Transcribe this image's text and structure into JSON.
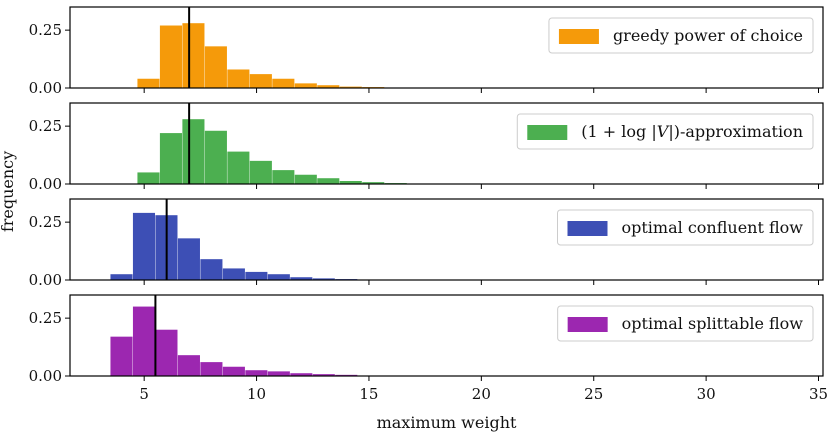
{
  "chart_data": {
    "type": "histogram",
    "xlabel": "maximum weight",
    "ylabel": "frequency",
    "xlim": [
      1.7,
      35.2
    ],
    "ylim": [
      0,
      0.35
    ],
    "xticks": [
      5,
      10,
      15,
      20,
      25,
      30,
      35
    ],
    "yticks": [
      0.0,
      0.25
    ],
    "ytick_labels": [
      "0.00",
      "0.25"
    ],
    "bin_width": 1.0,
    "legend_position": "top-right",
    "panels": [
      {
        "name": "greedy power of choice",
        "label_parts": [
          "greedy power of choice"
        ],
        "color": "#f59a0a",
        "bins_start": [
          4.7,
          5.7,
          6.7,
          7.7,
          8.7,
          9.7,
          10.7,
          11.7,
          12.7,
          13.7,
          14.7,
          15.7
        ],
        "values": [
          0.04,
          0.27,
          0.28,
          0.18,
          0.08,
          0.06,
          0.04,
          0.02,
          0.012,
          0.006,
          0.004,
          0.002
        ],
        "marker": 7.0
      },
      {
        "name": "(1 + log |V|)-approximation",
        "label_parts": [
          "(1 + log |",
          "V",
          "|)-approximation"
        ],
        "color": "#4caf50",
        "bins_start": [
          4.7,
          5.7,
          6.7,
          7.7,
          8.7,
          9.7,
          10.7,
          11.7,
          12.7,
          13.7,
          14.7,
          15.7
        ],
        "values": [
          0.05,
          0.22,
          0.28,
          0.23,
          0.14,
          0.1,
          0.06,
          0.04,
          0.025,
          0.013,
          0.008,
          0.004
        ],
        "marker": 7.0
      },
      {
        "name": "optimal confluent flow",
        "label_parts": [
          "optimal confluent flow"
        ],
        "color": "#3d4fb5",
        "bins_start": [
          3.5,
          4.5,
          5.5,
          6.5,
          7.5,
          8.5,
          9.5,
          10.5,
          11.5,
          12.5,
          13.5,
          14.5,
          15.5
        ],
        "values": [
          0.025,
          0.29,
          0.28,
          0.18,
          0.09,
          0.05,
          0.035,
          0.025,
          0.012,
          0.007,
          0.004,
          0.002,
          0.001
        ],
        "marker": 6.0
      },
      {
        "name": "optimal splittable flow",
        "label_parts": [
          "optimal splittable flow"
        ],
        "color": "#9c27b0",
        "bins_start": [
          3.5,
          4.5,
          5.5,
          6.5,
          7.5,
          8.5,
          9.5,
          10.5,
          11.5,
          12.5,
          13.5,
          14.5
        ],
        "values": [
          0.17,
          0.3,
          0.2,
          0.09,
          0.06,
          0.04,
          0.025,
          0.02,
          0.012,
          0.008,
          0.005,
          0.002
        ],
        "marker": 5.5
      }
    ]
  }
}
